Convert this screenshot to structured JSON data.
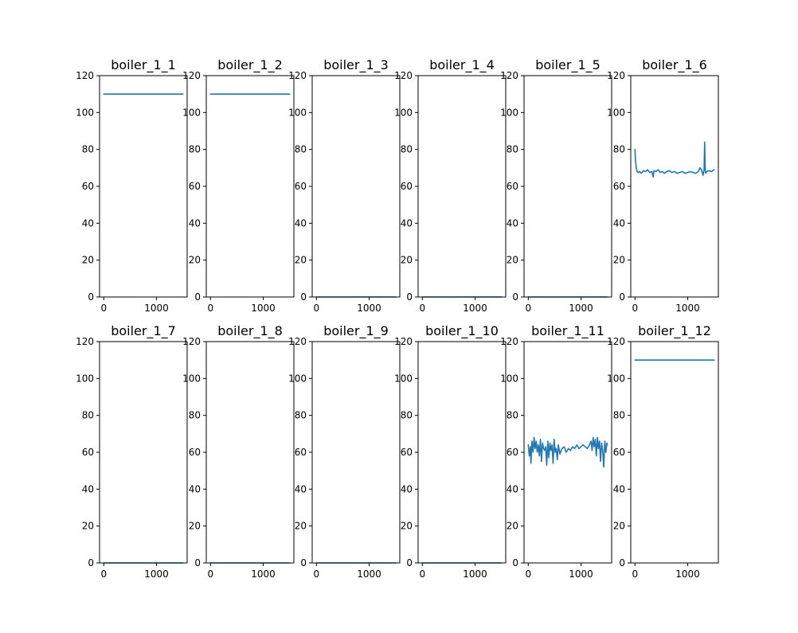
{
  "chart_data": {
    "type": "line",
    "layout": {
      "rows": 2,
      "cols": 6
    },
    "series_color": "#1f77b4",
    "shared_axes": {
      "xlim": [
        -80,
        1580
      ],
      "ylim": [
        0,
        120
      ],
      "xticks": [
        0,
        1000
      ],
      "yticks": [
        0,
        20,
        40,
        60,
        80,
        100,
        120
      ],
      "grid": false
    },
    "panels": [
      {
        "title": "boiler_1_1",
        "kind": "constant",
        "x_range": [
          0,
          1500
        ],
        "value": 110
      },
      {
        "title": "boiler_1_2",
        "kind": "constant",
        "x_range": [
          0,
          1500
        ],
        "value": 110
      },
      {
        "title": "boiler_1_3",
        "kind": "constant",
        "x_range": [
          0,
          1500
        ],
        "value": 0
      },
      {
        "title": "boiler_1_4",
        "kind": "constant",
        "x_range": [
          0,
          1500
        ],
        "value": 0
      },
      {
        "title": "boiler_1_5",
        "kind": "constant",
        "x_range": [
          0,
          1500
        ],
        "value": 0
      },
      {
        "title": "boiler_1_6",
        "kind": "series",
        "x": [
          0,
          10,
          25,
          40,
          60,
          90,
          120,
          160,
          200,
          240,
          280,
          320,
          345,
          360,
          400,
          440,
          480,
          520,
          560,
          600,
          650,
          700,
          750,
          800,
          850,
          900,
          950,
          1000,
          1050,
          1100,
          1150,
          1200,
          1230,
          1260,
          1290,
          1310,
          1320,
          1330,
          1340,
          1360,
          1400,
          1450,
          1500
        ],
        "values": [
          80,
          74,
          70,
          68,
          67.5,
          68,
          67,
          68.5,
          68,
          69,
          67.5,
          68,
          65,
          68.5,
          68,
          69,
          67.5,
          68,
          67,
          68,
          68.5,
          67.5,
          68,
          67,
          67.5,
          68,
          67,
          67.5,
          68,
          67.5,
          67,
          68,
          70,
          69,
          66,
          69,
          84,
          70,
          67,
          68,
          68.5,
          68,
          69
        ]
      },
      {
        "title": "boiler_1_7",
        "kind": "constant",
        "x_range": [
          0,
          1500
        ],
        "value": 0
      },
      {
        "title": "boiler_1_8",
        "kind": "constant",
        "x_range": [
          0,
          1500
        ],
        "value": 0
      },
      {
        "title": "boiler_1_9",
        "kind": "constant",
        "x_range": [
          0,
          1500
        ],
        "value": 0
      },
      {
        "title": "boiler_1_10",
        "kind": "constant",
        "x_range": [
          0,
          1500
        ],
        "value": 0
      },
      {
        "title": "boiler_1_11",
        "kind": "series",
        "x": [
          0,
          20,
          40,
          50,
          70,
          90,
          110,
          130,
          150,
          170,
          190,
          210,
          230,
          250,
          270,
          290,
          310,
          330,
          350,
          370,
          390,
          410,
          430,
          450,
          470,
          490,
          510,
          530,
          550,
          570,
          600,
          640,
          680,
          720,
          760,
          800,
          840,
          880,
          920,
          960,
          1000,
          1040,
          1080,
          1120,
          1160,
          1190,
          1210,
          1230,
          1250,
          1270,
          1290,
          1310,
          1330,
          1350,
          1370,
          1390,
          1410,
          1430,
          1450,
          1470,
          1490,
          1500
        ],
        "values": [
          64,
          58,
          63,
          54,
          66,
          60,
          68,
          62,
          66,
          60,
          64,
          58,
          67,
          55,
          65,
          62,
          61,
          63,
          53,
          66,
          57,
          65,
          61,
          64,
          54,
          67,
          60,
          62,
          56,
          64,
          59,
          62,
          63,
          60,
          62,
          61,
          63,
          62,
          64,
          62,
          63,
          64,
          63,
          62,
          64,
          66,
          61,
          68,
          63,
          67,
          58,
          68,
          62,
          66,
          55,
          65,
          61,
          52,
          66,
          60,
          65,
          64
        ]
      },
      {
        "title": "boiler_1_12",
        "kind": "constant",
        "x_range": [
          0,
          1500
        ],
        "value": 110
      }
    ]
  }
}
